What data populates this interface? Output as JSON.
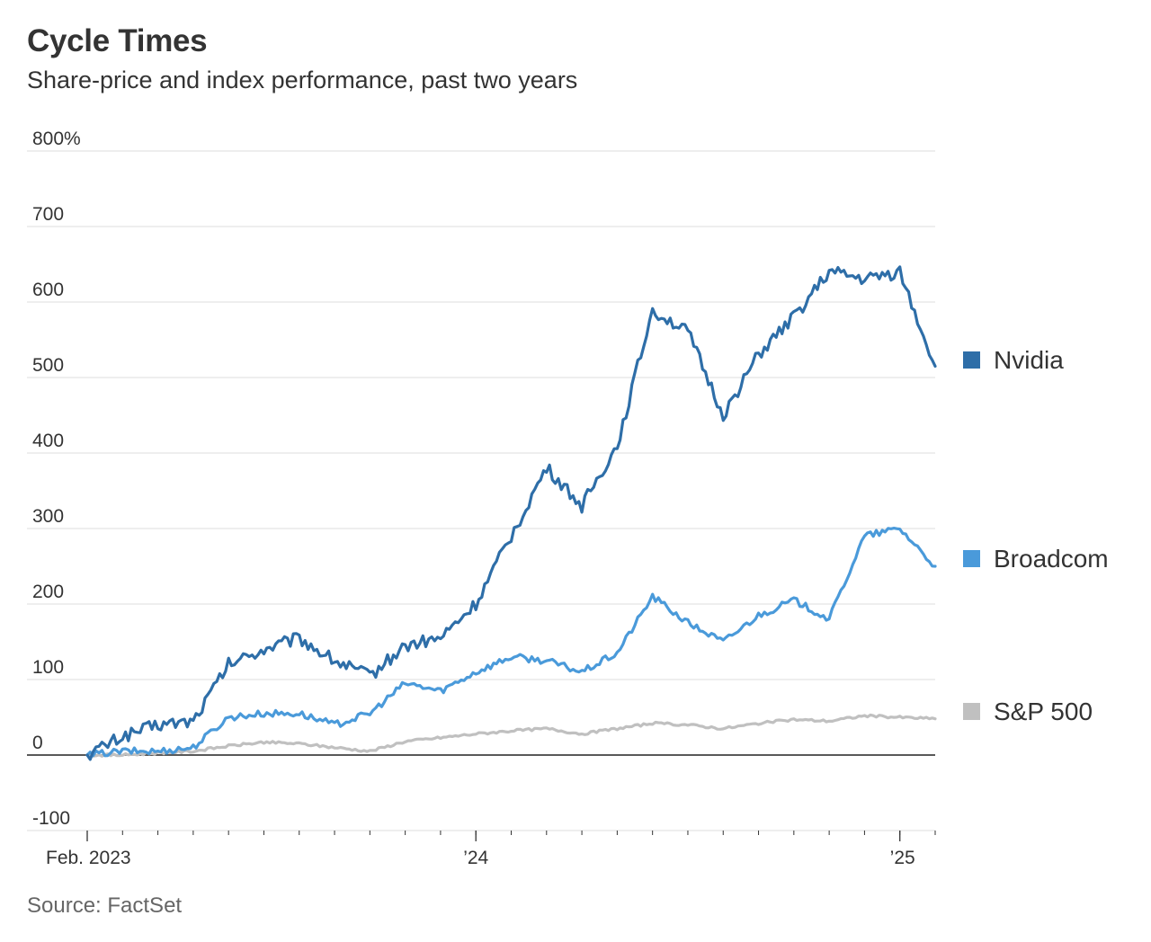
{
  "chart_data": {
    "type": "line",
    "title": "Cycle Times",
    "subtitle": "Share-price and index performance, past two years",
    "source": "Source: FactSet",
    "xlabel": "",
    "ylabel": "",
    "ylim": [
      -100,
      800
    ],
    "y_ticks": [
      {
        "value": 800,
        "label": "800%"
      },
      {
        "value": 700,
        "label": "700"
      },
      {
        "value": 600,
        "label": "600"
      },
      {
        "value": 500,
        "label": "500"
      },
      {
        "value": 400,
        "label": "400"
      },
      {
        "value": 300,
        "label": "300"
      },
      {
        "value": 200,
        "label": "200"
      },
      {
        "value": 100,
        "label": "100"
      },
      {
        "value": 0,
        "label": "0"
      },
      {
        "value": -100,
        "label": "-100"
      }
    ],
    "x_ticks": [
      {
        "x": "2023-02",
        "label": "Feb. 2023"
      },
      {
        "x": "2024-01",
        "label": "’24"
      },
      {
        "x": "2025-01",
        "label": "’25"
      }
    ],
    "grid": true,
    "legend": "right",
    "x": [
      "2023-02",
      "2023-03",
      "2023-04",
      "2023-05",
      "2023-06",
      "2023-07",
      "2023-08",
      "2023-09",
      "2023-10",
      "2023-11",
      "2023-12",
      "2024-01",
      "2024-02",
      "2024-03",
      "2024-04",
      "2024-05",
      "2024-06",
      "2024-07",
      "2024-08",
      "2024-09",
      "2024-10",
      "2024-11",
      "2024-12",
      "2025-01",
      "2025-02"
    ],
    "series": [
      {
        "name": "Nvidia",
        "color": "#2e6ea8",
        "values": [
          0,
          25,
          40,
          45,
          120,
          140,
          155,
          125,
          105,
          145,
          155,
          200,
          290,
          380,
          330,
          410,
          590,
          560,
          450,
          530,
          580,
          640,
          630,
          640,
          515
        ]
      },
      {
        "name": "Broadcom",
        "color": "#4a9ada",
        "values": [
          0,
          5,
          5,
          10,
          50,
          55,
          55,
          40,
          55,
          95,
          85,
          110,
          130,
          125,
          110,
          135,
          210,
          175,
          150,
          185,
          205,
          180,
          290,
          300,
          250
        ]
      },
      {
        "name": "S&P 500",
        "color": "#c0c0c0",
        "values": [
          0,
          0,
          3,
          5,
          12,
          17,
          15,
          10,
          5,
          18,
          23,
          28,
          32,
          35,
          28,
          35,
          42,
          40,
          35,
          42,
          47,
          45,
          52,
          50,
          48
        ]
      }
    ]
  }
}
